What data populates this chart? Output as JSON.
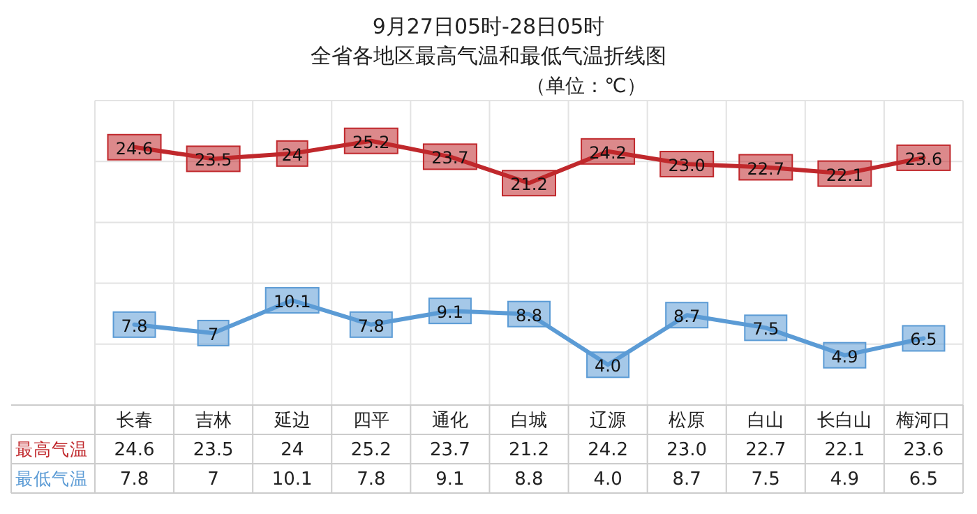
{
  "chart_data": {
    "type": "line",
    "title": "9月27日05时-28日05时",
    "subtitle": "全省各地区最高气温和最低气温折线图",
    "annotations": [
      "（单位：℃）"
    ],
    "categories": [
      "长春",
      "吉林",
      "延边",
      "四平",
      "通化",
      "白城",
      "辽源",
      "松原",
      "白山",
      "长白山",
      "梅河口"
    ],
    "series": [
      {
        "name": "最高气温",
        "color": "#c0282c",
        "values": [
          24.6,
          23.5,
          24,
          25.2,
          23.7,
          21.2,
          24.2,
          23.0,
          22.7,
          22.1,
          23.6
        ],
        "value_labels": [
          "24.6",
          "23.5",
          "24",
          "25.2",
          "23.7",
          "21.2",
          "24.2",
          "23.0",
          "22.7",
          "22.1",
          "23.6"
        ]
      },
      {
        "name": "最低气温",
        "color": "#5b9bd5",
        "values": [
          7.8,
          7,
          10.1,
          7.8,
          9.1,
          8.8,
          4.0,
          8.7,
          7.5,
          4.9,
          6.5
        ],
        "value_labels": [
          "7.8",
          "7",
          "10.1",
          "7.8",
          "9.1",
          "8.8",
          "4.0",
          "8.7",
          "7.5",
          "4.9",
          "6.5"
        ]
      }
    ],
    "data_labels": true,
    "marker": "square",
    "line_style": "solid",
    "grid": true
  }
}
